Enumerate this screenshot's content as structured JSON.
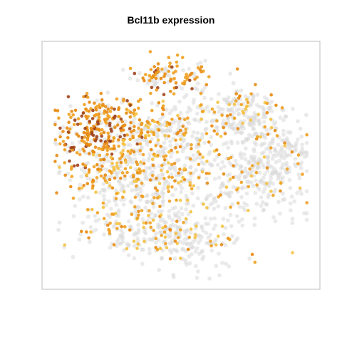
{
  "chart_data": {
    "type": "scatter",
    "title": "Bcl11b expression",
    "xlabel": "",
    "ylabel": "",
    "grid": false,
    "axes_ticks": false,
    "colors": {
      "background_cells": "#d9d9d9",
      "low": "#f5c242",
      "mid": "#f0a020",
      "high": "#e88a10",
      "max": "#a0421a",
      "frame": "#bdbdbd"
    },
    "clusters": [
      {
        "name": "top-center",
        "cx": 0.455,
        "cy": 0.88,
        "sx": 0.07,
        "sy": 0.04,
        "n_bg": 40,
        "n_expr": 70,
        "expr_level": 0.75
      },
      {
        "name": "left-upper",
        "cx": 0.2,
        "cy": 0.65,
        "sx": 0.1,
        "sy": 0.08,
        "n_bg": 70,
        "n_expr": 260,
        "expr_level": 0.8
      },
      {
        "name": "left-mid",
        "cx": 0.22,
        "cy": 0.47,
        "sx": 0.09,
        "sy": 0.06,
        "n_bg": 80,
        "n_expr": 80,
        "expr_level": 0.6
      },
      {
        "name": "center-mid",
        "cx": 0.47,
        "cy": 0.48,
        "sx": 0.13,
        "sy": 0.12,
        "n_bg": 280,
        "n_expr": 140,
        "expr_level": 0.55
      },
      {
        "name": "center-upper",
        "cx": 0.45,
        "cy": 0.66,
        "sx": 0.09,
        "sy": 0.05,
        "n_bg": 80,
        "n_expr": 40,
        "expr_level": 0.55
      },
      {
        "name": "right-upper",
        "cx": 0.74,
        "cy": 0.72,
        "sx": 0.09,
        "sy": 0.06,
        "n_bg": 160,
        "n_expr": 50,
        "expr_level": 0.55
      },
      {
        "name": "right-mid",
        "cx": 0.82,
        "cy": 0.47,
        "sx": 0.09,
        "sy": 0.1,
        "n_bg": 260,
        "n_expr": 35,
        "expr_level": 0.5
      },
      {
        "name": "bottom-left",
        "cx": 0.32,
        "cy": 0.25,
        "sx": 0.12,
        "sy": 0.07,
        "n_bg": 140,
        "n_expr": 50,
        "expr_level": 0.5
      },
      {
        "name": "bottom-center",
        "cx": 0.55,
        "cy": 0.18,
        "sx": 0.1,
        "sy": 0.07,
        "n_bg": 130,
        "n_expr": 30,
        "expr_level": 0.5
      },
      {
        "name": "far-right-tip",
        "cx": 0.93,
        "cy": 0.58,
        "sx": 0.03,
        "sy": 0.02,
        "n_bg": 20,
        "n_expr": 0,
        "expr_level": 0.0
      }
    ],
    "point_radius": 2.3,
    "seed": 1234
  }
}
